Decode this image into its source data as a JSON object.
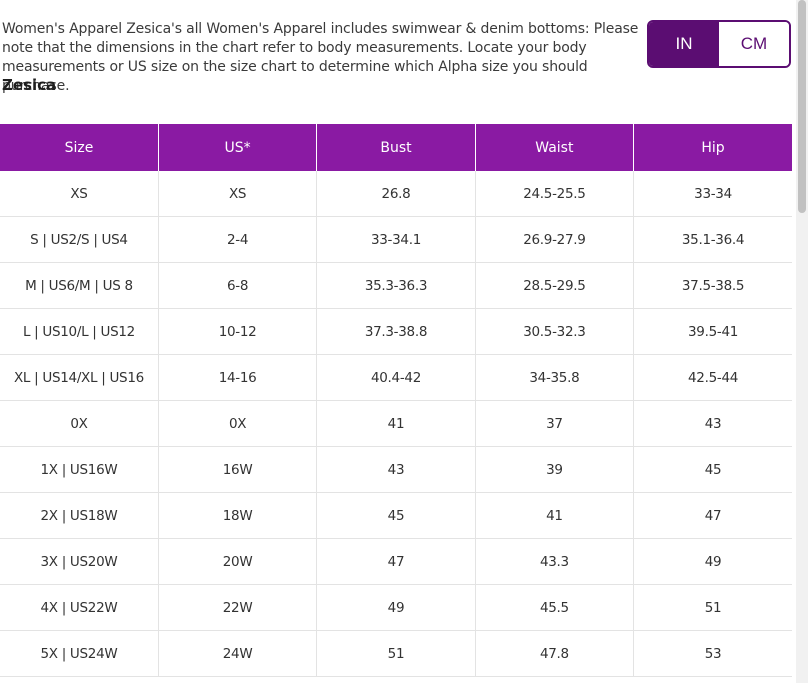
{
  "intro": {
    "text": "Women's Apparel Zesica's all Women's Apparel includes swimwear & denim bottoms: Please note that the dimensions in the chart refer to body measurements. Locate your body measurements or US size on the size chart to determine which Alpha size you should purchase."
  },
  "brand": "Zesica",
  "unit_toggle": {
    "in_label": "IN",
    "cm_label": "CM",
    "selected": "IN"
  },
  "colors": {
    "header_bg": "#8a1aa3",
    "toggle_active": "#5b0d72"
  },
  "table": {
    "headers": [
      "Size",
      "US*",
      "Bust",
      "Waist",
      "Hip"
    ],
    "rows": [
      [
        "XS",
        "XS",
        "26.8",
        "24.5-25.5",
        "33-34"
      ],
      [
        "S | US2/S | US4",
        "2-4",
        "33-34.1",
        "26.9-27.9",
        "35.1-36.4"
      ],
      [
        "M | US6/M | US 8",
        "6-8",
        "35.3-36.3",
        "28.5-29.5",
        "37.5-38.5"
      ],
      [
        "L | US10/L | US12",
        "10-12",
        "37.3-38.8",
        "30.5-32.3",
        "39.5-41"
      ],
      [
        "XL | US14/XL | US16",
        "14-16",
        "40.4-42",
        "34-35.8",
        "42.5-44"
      ],
      [
        "0X",
        "0X",
        "41",
        "37",
        "43"
      ],
      [
        "1X | US16W",
        "16W",
        "43",
        "39",
        "45"
      ],
      [
        "2X | US18W",
        "18W",
        "45",
        "41",
        "47"
      ],
      [
        "3X | US20W",
        "20W",
        "47",
        "43.3",
        "49"
      ],
      [
        "4X | US22W",
        "22W",
        "49",
        "45.5",
        "51"
      ],
      [
        "5X | US24W",
        "24W",
        "51",
        "47.8",
        "53"
      ]
    ]
  }
}
